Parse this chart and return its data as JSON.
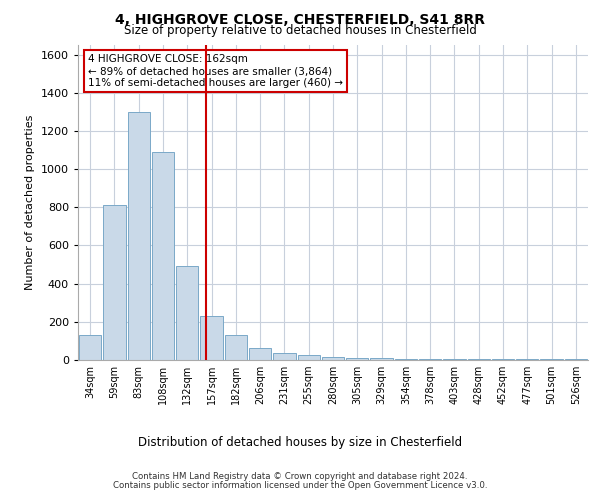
{
  "title1": "4, HIGHGROVE CLOSE, CHESTERFIELD, S41 8RR",
  "title2": "Size of property relative to detached houses in Chesterfield",
  "xlabel": "Distribution of detached houses by size in Chesterfield",
  "ylabel": "Number of detached properties",
  "categories": [
    "34sqm",
    "59sqm",
    "83sqm",
    "108sqm",
    "132sqm",
    "157sqm",
    "182sqm",
    "206sqm",
    "231sqm",
    "255sqm",
    "280sqm",
    "305sqm",
    "329sqm",
    "354sqm",
    "378sqm",
    "403sqm",
    "428sqm",
    "452sqm",
    "477sqm",
    "501sqm",
    "526sqm"
  ],
  "values": [
    130,
    810,
    1300,
    1090,
    490,
    230,
    130,
    65,
    35,
    25,
    15,
    10,
    10,
    5,
    5,
    5,
    5,
    5,
    5,
    5,
    5
  ],
  "bar_color": "#c9d9e8",
  "bar_edge_color": "#7aa8c8",
  "vline_x": 4.75,
  "vline_color": "#cc0000",
  "annotation_text": "4 HIGHGROVE CLOSE: 162sqm\n← 89% of detached houses are smaller (3,864)\n11% of semi-detached houses are larger (460) →",
  "annotation_box_color": "#ffffff",
  "annotation_box_edgecolor": "#cc0000",
  "ylim": [
    0,
    1650
  ],
  "yticks": [
    0,
    200,
    400,
    600,
    800,
    1000,
    1200,
    1400,
    1600
  ],
  "footer1": "Contains HM Land Registry data © Crown copyright and database right 2024.",
  "footer2": "Contains public sector information licensed under the Open Government Licence v3.0.",
  "bg_color": "#ffffff",
  "grid_color": "#c8d0dc"
}
